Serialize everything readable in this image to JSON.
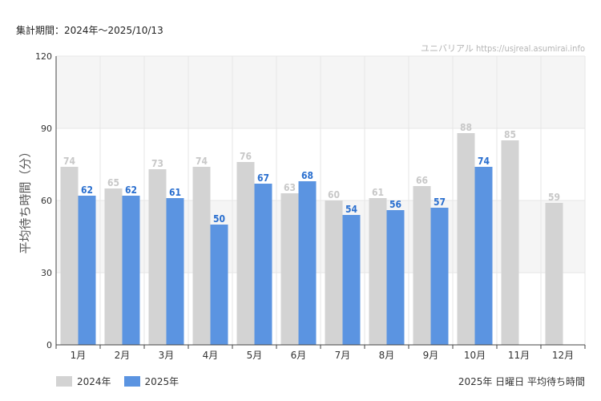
{
  "header": {
    "period": "集計期間：2024年～2025/10/13",
    "source": "ユニバリアル  https://usjreal.asumirai.info"
  },
  "footer": {
    "note": "2025年 日曜日 平均待ち時間"
  },
  "colors": {
    "series_2024": "#d3d3d3",
    "series_2025": "#5b94e1",
    "label_2024": "#c8c8c8",
    "label_2025": "#2a6fcf",
    "band": "#f5f5f5",
    "grid": "#e6e6e6"
  },
  "chart_data": {
    "type": "bar",
    "title": "",
    "xlabel": "",
    "ylabel": "平均待ち時間（分）",
    "ylim": [
      0,
      120
    ],
    "yticks": [
      0,
      30,
      60,
      90,
      120
    ],
    "grid": true,
    "legend_position": "bottom-left",
    "categories": [
      "1月",
      "2月",
      "3月",
      "4月",
      "5月",
      "6月",
      "7月",
      "8月",
      "9月",
      "10月",
      "11月",
      "12月"
    ],
    "series": [
      {
        "name": "2024年",
        "values": [
          74,
          65,
          73,
          74,
          76,
          63,
          60,
          61,
          66,
          88,
          85,
          59
        ]
      },
      {
        "name": "2025年",
        "values": [
          62,
          62,
          61,
          50,
          67,
          68,
          54,
          56,
          57,
          74,
          null,
          null
        ]
      }
    ]
  }
}
